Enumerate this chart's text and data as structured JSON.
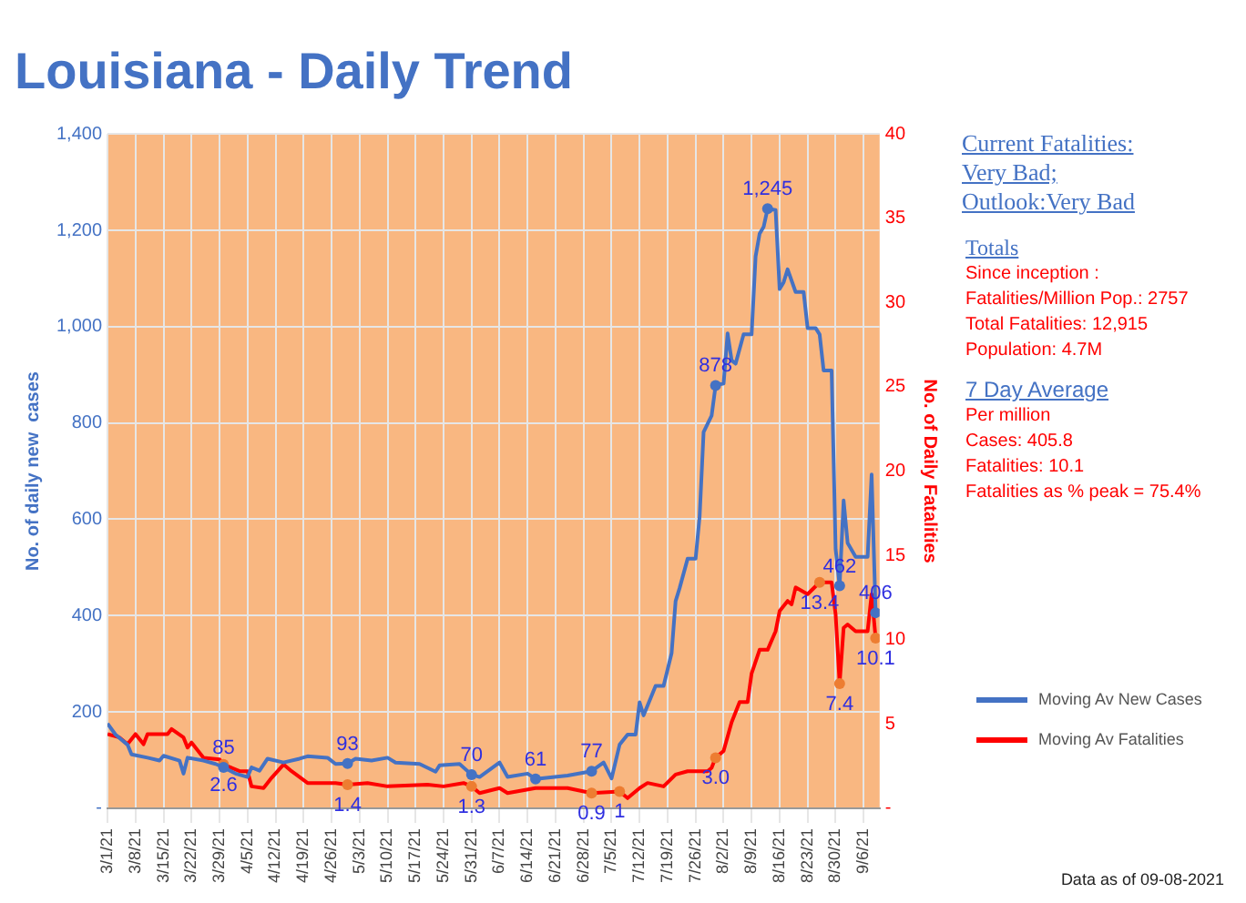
{
  "chart_data": {
    "type": "line",
    "title": "Louisiana - Daily Trend",
    "ylabel": "No. of daily new  cases",
    "y2label": "No. of Daily Fatalities",
    "xlim": [
      "2021-03-01",
      "2021-09-10"
    ],
    "xticks": [
      {
        "value": "2021-03-01",
        "label": "3/1/21"
      },
      {
        "value": "2021-03-08",
        "label": "3/8/21"
      },
      {
        "value": "2021-03-15",
        "label": "3/15/21"
      },
      {
        "value": "2021-03-22",
        "label": "3/22/21"
      },
      {
        "value": "2021-03-29",
        "label": "3/29/21"
      },
      {
        "value": "2021-04-05",
        "label": "4/5/21"
      },
      {
        "value": "2021-04-12",
        "label": "4/12/21"
      },
      {
        "value": "2021-04-19",
        "label": "4/19/21"
      },
      {
        "value": "2021-04-26",
        "label": "4/26/21"
      },
      {
        "value": "2021-05-03",
        "label": "5/3/21"
      },
      {
        "value": "2021-05-10",
        "label": "5/10/21"
      },
      {
        "value": "2021-05-17",
        "label": "5/17/21"
      },
      {
        "value": "2021-05-24",
        "label": "5/24/21"
      },
      {
        "value": "2021-05-31",
        "label": "5/31/21"
      },
      {
        "value": "2021-06-07",
        "label": "6/7/21"
      },
      {
        "value": "2021-06-14",
        "label": "6/14/21"
      },
      {
        "value": "2021-06-21",
        "label": "6/21/21"
      },
      {
        "value": "2021-06-28",
        "label": "6/28/21"
      },
      {
        "value": "2021-07-05",
        "label": "7/5/21"
      },
      {
        "value": "2021-07-12",
        "label": "7/12/21"
      },
      {
        "value": "2021-07-19",
        "label": "7/19/21"
      },
      {
        "value": "2021-07-26",
        "label": "7/26/21"
      },
      {
        "value": "2021-08-02",
        "label": "8/2/21"
      },
      {
        "value": "2021-08-09",
        "label": "8/9/21"
      },
      {
        "value": "2021-08-16",
        "label": "8/16/21"
      },
      {
        "value": "2021-08-23",
        "label": "8/23/21"
      },
      {
        "value": "2021-08-30",
        "label": "8/30/21"
      },
      {
        "value": "2021-09-06",
        "label": "9/6/21"
      }
    ],
    "ylim": [
      0,
      1400
    ],
    "yticks": [
      {
        "value": 0,
        "label": "-"
      },
      200,
      400,
      600,
      800,
      {
        "value": 1000,
        "label": "1,000"
      },
      {
        "value": 1200,
        "label": "1,200"
      },
      {
        "value": 1400,
        "label": "1,400"
      }
    ],
    "y2lim": [
      0,
      40
    ],
    "y2ticks": [
      {
        "value": 0,
        "label": "-"
      },
      5,
      10,
      15,
      20,
      25,
      30,
      35,
      40
    ],
    "grid": true,
    "legend": "right",
    "series": [
      {
        "name": "Moving Av New Cases",
        "color": "#4472c4",
        "x": [
          "2021-03-01",
          "2021-03-03",
          "2021-03-06",
          "2021-03-07",
          "2021-03-11",
          "2021-03-14",
          "2021-03-15",
          "2021-03-19",
          "2021-03-20",
          "2021-03-21",
          "2021-03-25",
          "2021-03-28",
          "2021-03-30",
          "2021-04-02",
          "2021-04-05",
          "2021-04-06",
          "2021-04-08",
          "2021-04-10",
          "2021-04-14",
          "2021-04-18",
          "2021-04-20",
          "2021-04-25",
          "2021-04-27",
          "2021-04-30",
          "2021-05-02",
          "2021-05-06",
          "2021-05-10",
          "2021-05-12",
          "2021-05-18",
          "2021-05-22",
          "2021-05-23",
          "2021-05-28",
          "2021-05-31",
          "2021-06-02",
          "2021-06-07",
          "2021-06-09",
          "2021-06-14",
          "2021-06-16",
          "2021-06-24",
          "2021-06-30",
          "2021-07-03",
          "2021-07-05",
          "2021-07-07",
          "2021-07-09",
          "2021-07-11",
          "2021-07-12",
          "2021-07-13",
          "2021-07-16",
          "2021-07-18",
          "2021-07-20",
          "2021-07-21",
          "2021-07-22",
          "2021-07-24",
          "2021-07-26",
          "2021-07-27",
          "2021-07-28",
          "2021-07-30",
          "2021-07-31",
          "2021-08-02",
          "2021-08-03",
          "2021-08-04",
          "2021-08-05",
          "2021-08-07",
          "2021-08-09",
          "2021-08-10",
          "2021-08-11",
          "2021-08-12",
          "2021-08-13",
          "2021-08-15",
          "2021-08-16",
          "2021-08-17",
          "2021-08-18",
          "2021-08-20",
          "2021-08-22",
          "2021-08-23",
          "2021-08-25",
          "2021-08-26",
          "2021-08-27",
          "2021-08-29",
          "2021-08-30",
          "2021-08-31",
          "2021-09-01",
          "2021-09-02",
          "2021-09-04",
          "2021-09-07",
          "2021-09-08",
          "2021-09-09"
        ],
        "values": [
          176,
          153,
          132,
          112,
          105,
          99,
          109,
          99,
          72,
          105,
          99,
          92,
          85,
          72,
          65,
          85,
          78,
          103,
          95,
          103,
          108,
          105,
          92,
          93,
          103,
          99,
          105,
          95,
          92,
          76,
          89,
          92,
          70,
          65,
          95,
          65,
          72,
          61,
          68,
          77,
          95,
          62,
          132,
          153,
          153,
          220,
          193,
          254,
          254,
          322,
          430,
          457,
          518,
          518,
          605,
          781,
          815,
          878,
          882,
          986,
          930,
          923,
          984,
          984,
          1146,
          1193,
          1207,
          1245,
          1242,
          1078,
          1092,
          1119,
          1072,
          1072,
          997,
          997,
          984,
          909,
          909,
          538,
          462,
          639,
          551,
          522,
          522,
          693,
          406
        ],
        "value_labels": [
          null,
          null,
          null,
          null,
          null,
          null,
          null,
          null,
          null,
          null,
          null,
          null,
          "85",
          null,
          null,
          null,
          null,
          null,
          null,
          null,
          null,
          null,
          null,
          "93",
          null,
          null,
          null,
          null,
          null,
          null,
          null,
          null,
          "70",
          null,
          null,
          null,
          null,
          "61",
          null,
          "77",
          null,
          null,
          null,
          null,
          null,
          null,
          null,
          null,
          null,
          null,
          null,
          null,
          null,
          null,
          null,
          null,
          null,
          "878",
          null,
          null,
          null,
          null,
          null,
          null,
          null,
          null,
          null,
          "1,245",
          null,
          null,
          null,
          null,
          null,
          null,
          null,
          null,
          null,
          null,
          null,
          null,
          "462",
          null,
          null,
          null,
          null,
          null,
          "406"
        ]
      },
      {
        "name": "Moving Av Fatalities",
        "color": "#ff0000",
        "axis": "y2",
        "x": [
          "2021-03-01",
          "2021-03-04",
          "2021-03-06",
          "2021-03-08",
          "2021-03-10",
          "2021-03-11",
          "2021-03-16",
          "2021-03-17",
          "2021-03-20",
          "2021-03-21",
          "2021-03-22",
          "2021-03-25",
          "2021-03-29",
          "2021-03-30",
          "2021-04-03",
          "2021-04-05",
          "2021-04-06",
          "2021-04-09",
          "2021-04-11",
          "2021-04-14",
          "2021-04-16",
          "2021-04-20",
          "2021-04-27",
          "2021-04-30",
          "2021-05-05",
          "2021-05-10",
          "2021-05-20",
          "2021-05-24",
          "2021-05-29",
          "2021-05-31",
          "2021-06-02",
          "2021-06-07",
          "2021-06-09",
          "2021-06-16",
          "2021-06-24",
          "2021-06-30",
          "2021-07-07",
          "2021-07-09",
          "2021-07-12",
          "2021-07-14",
          "2021-07-18",
          "2021-07-21",
          "2021-07-24",
          "2021-07-29",
          "2021-07-30",
          "2021-07-31",
          "2021-08-02",
          "2021-08-04",
          "2021-08-06",
          "2021-08-08",
          "2021-08-09",
          "2021-08-11",
          "2021-08-13",
          "2021-08-15",
          "2021-08-16",
          "2021-08-18",
          "2021-08-19",
          "2021-08-20",
          "2021-08-23",
          "2021-08-26",
          "2021-08-29",
          "2021-08-30",
          "2021-08-31",
          "2021-09-01",
          "2021-09-02",
          "2021-09-04",
          "2021-09-07",
          "2021-09-08",
          "2021-09-09"
        ],
        "values": [
          4.4,
          4.2,
          3.8,
          4.4,
          3.8,
          4.4,
          4.4,
          4.7,
          4.2,
          3.6,
          3.9,
          3.0,
          2.9,
          2.6,
          2.2,
          2.2,
          1.3,
          1.2,
          1.8,
          2.6,
          2.2,
          1.5,
          1.5,
          1.4,
          1.5,
          1.3,
          1.4,
          1.3,
          1.5,
          1.3,
          0.9,
          1.2,
          0.9,
          1.2,
          1.2,
          0.9,
          1,
          0.6,
          1.2,
          1.5,
          1.3,
          2.0,
          2.2,
          2.2,
          2.4,
          3.0,
          3.4,
          5.1,
          6.3,
          6.3,
          8.0,
          9.4,
          9.4,
          10.5,
          11.7,
          12.3,
          12.1,
          13.1,
          12.7,
          13.4,
          13.4,
          11.5,
          7.4,
          10.7,
          10.9,
          10.5,
          10.5,
          12.7,
          10.1
        ],
        "value_labels": [
          null,
          null,
          null,
          null,
          null,
          null,
          null,
          null,
          null,
          null,
          null,
          null,
          null,
          "2.6",
          null,
          null,
          null,
          null,
          null,
          null,
          null,
          null,
          null,
          "1.4",
          null,
          null,
          null,
          null,
          null,
          "1.3",
          null,
          null,
          null,
          null,
          null,
          "0.9",
          "1",
          null,
          null,
          null,
          null,
          null,
          null,
          null,
          null,
          "3.0",
          null,
          null,
          null,
          null,
          null,
          null,
          null,
          null,
          null,
          null,
          null,
          null,
          null,
          "13.4",
          null,
          null,
          "7.4",
          null,
          null,
          null,
          null,
          null,
          "10.1"
        ]
      }
    ],
    "annotations": [
      "Current Fatalities:",
      "Very Bad;",
      "Outlook:Very Bad",
      "Totals",
      "Since inception :",
      "Fatalities/Million Pop.: 2757",
      "Total Fatalities: 12,915",
      "Population: 4.7M",
      "7 Day Average",
      "Per million",
      "Cases: 405.8",
      "Fatalities: 10.1",
      "Fatalities as % peak = 75.4%",
      "Data as of 09-08-2021"
    ]
  }
}
